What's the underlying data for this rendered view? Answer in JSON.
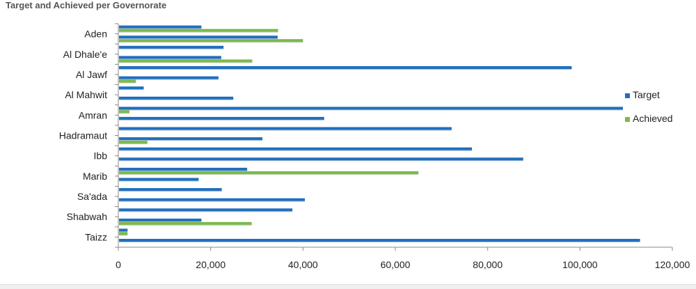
{
  "chart_data": {
    "type": "bar",
    "orientation": "horizontal",
    "title": "Target and Achieved per Governorate",
    "xlim": [
      0,
      120000
    ],
    "xticks": [
      0,
      20000,
      40000,
      60000,
      80000,
      100000,
      120000
    ],
    "xtick_labels": [
      "0",
      "20,000",
      "40,000",
      "60,000",
      "80,000",
      "100,000",
      "120,000"
    ],
    "ytick_labels": [
      "Aden",
      "Al Dhale'e",
      "Al Jawf",
      "Al Mahwit",
      "Amran",
      "Hadramaut",
      "Ibb",
      "Marib",
      "Sa'ada",
      "Shabwah",
      "Taizz"
    ],
    "legend_position": "right",
    "grid": false,
    "colors": {
      "target": "#1f6fbf",
      "achieved": "#7cb94b"
    },
    "series": [
      {
        "name": "Target",
        "values": [
          18000,
          34500,
          22800,
          22300,
          98200,
          21700,
          5500,
          24900,
          109300,
          44600,
          72200,
          31200,
          76600,
          87700,
          27900,
          17400,
          22400,
          40400,
          37700,
          18000,
          2000,
          113000
        ]
      },
      {
        "name": "Achieved",
        "values": [
          34600,
          40000,
          0,
          29000,
          0,
          3800,
          0,
          0,
          2400,
          0,
          0,
          6300,
          0,
          0,
          65000,
          0,
          0,
          0,
          0,
          28900,
          2000,
          0
        ]
      }
    ]
  }
}
